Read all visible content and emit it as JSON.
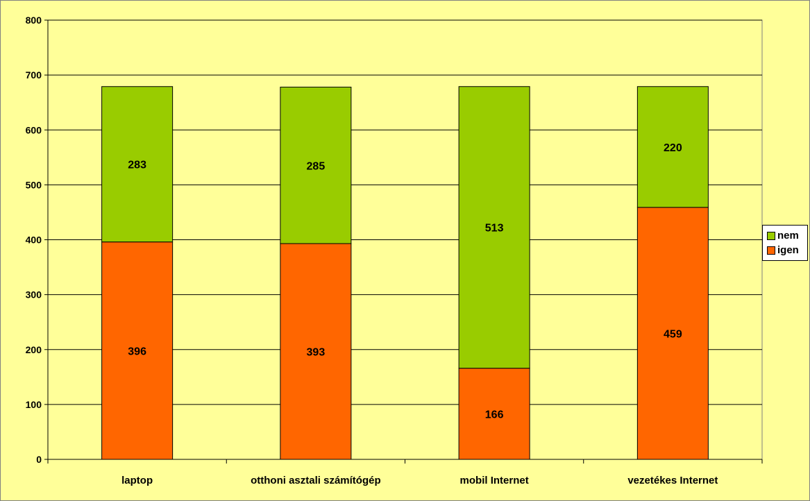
{
  "chart_data": {
    "type": "bar",
    "stacked": true,
    "categories": [
      "laptop",
      "otthoni asztali számítógép",
      "mobil Internet",
      "vezetékes Internet"
    ],
    "series": [
      {
        "name": "igen",
        "values": [
          396,
          393,
          166,
          459
        ],
        "color": "#ff6600"
      },
      {
        "name": "nem",
        "values": [
          283,
          285,
          513,
          220
        ],
        "color": "#99cc00"
      }
    ],
    "ylim": [
      0,
      800
    ],
    "yticks": [
      0,
      100,
      200,
      300,
      400,
      500,
      600,
      700,
      800
    ],
    "grid": true,
    "legend_position": "right",
    "legend_order": [
      "nem",
      "igen"
    ],
    "background_color": "#ffff99",
    "title": "",
    "xlabel": "",
    "ylabel": ""
  }
}
